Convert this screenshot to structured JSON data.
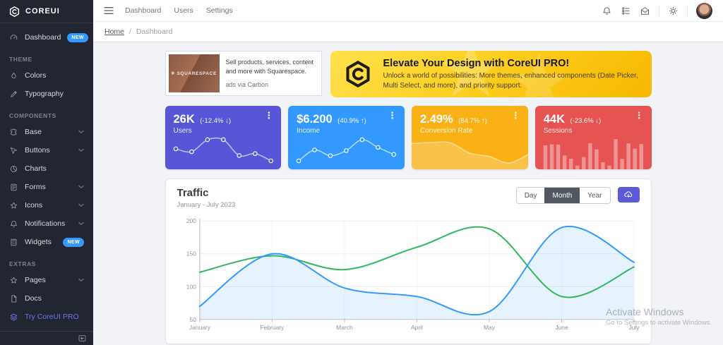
{
  "brand": {
    "name": "COREUI"
  },
  "header": {
    "nav": [
      "Dashboard",
      "Users",
      "Settings"
    ],
    "breadcrumb": {
      "home": "Home",
      "separator": "/",
      "current": "Dashboard"
    }
  },
  "sidebar": {
    "badge_new": "NEW",
    "sections": {
      "theme": "THEME",
      "components": "COMPONENTS",
      "extras": "EXTRAS"
    },
    "items": {
      "dashboard": "Dashboard",
      "colors": "Colors",
      "typography": "Typography",
      "base": "Base",
      "buttons": "Buttons",
      "charts": "Charts",
      "forms": "Forms",
      "icons": "Icons",
      "notifications": "Notifications",
      "widgets": "Widgets",
      "pages": "Pages",
      "docs": "Docs",
      "try_pro": "Try CoreUI PRO"
    }
  },
  "ad": {
    "brand": "SQUARESPACE",
    "text": "Sell products, services, content and more with Squarespace.",
    "attribution": "ads via Carbon"
  },
  "promo": {
    "title": "Elevate Your Design with CoreUI PRO!",
    "body": "Unlock a world of possibilities: More themes, enhanced components (Date Picker, Multi Select, and more), and priority support."
  },
  "stats": [
    {
      "value": "26K",
      "delta": "(-12.4% ↓)",
      "label": "Users",
      "color": "#5856d6"
    },
    {
      "value": "$6.200",
      "delta": "(40.9% ↑)",
      "label": "Income",
      "color": "#3399ff"
    },
    {
      "value": "2.49%",
      "delta": "(84.7% ↑)",
      "label": "Conversion Rate",
      "color": "#f9b115"
    },
    {
      "value": "44K",
      "delta": "(-23.6% ↓)",
      "label": "Sessions",
      "color": "#e55353"
    }
  ],
  "traffic": {
    "title": "Traffic",
    "subtitle": "January - July 2023",
    "ranges": [
      "Day",
      "Month",
      "Year"
    ],
    "active_range": "Month"
  },
  "watermark": {
    "line1": "Activate Windows",
    "line2": "Go to Settings to activate Windows."
  },
  "chart_data": {
    "traffic": {
      "type": "line",
      "x": [
        "January",
        "February",
        "March",
        "April",
        "May",
        "June",
        "July"
      ],
      "series": [
        {
          "name": "blue",
          "color": "#3399ff",
          "fill": "rgba(51,153,255,0.12)",
          "area": true,
          "values": [
            70,
            150,
            98,
            85,
            62,
            190,
            137
          ]
        },
        {
          "name": "green",
          "color": "#2eb85c",
          "area": false,
          "values": [
            122,
            147,
            126,
            160,
            188,
            85,
            130
          ]
        }
      ],
      "ylim": [
        50,
        200
      ],
      "yticks": [
        50,
        100,
        150,
        200
      ],
      "grid": true,
      "legend": "none"
    },
    "users_spark": {
      "type": "line",
      "values": [
        65,
        59,
        84,
        84,
        51,
        55,
        40
      ],
      "point_fill": "#5856d6"
    },
    "income_spark": {
      "type": "line",
      "values": [
        1,
        18,
        9,
        17,
        34,
        22,
        11
      ],
      "point_fill": "#3399ff"
    },
    "conversion_spark": {
      "type": "area",
      "values": [
        78,
        81,
        80,
        45,
        34,
        12,
        40
      ]
    },
    "sessions_spark": {
      "type": "bar",
      "values": [
        78,
        81,
        80,
        45,
        34,
        12,
        40,
        85,
        65,
        23,
        12,
        98,
        34,
        84,
        67,
        82
      ]
    }
  }
}
